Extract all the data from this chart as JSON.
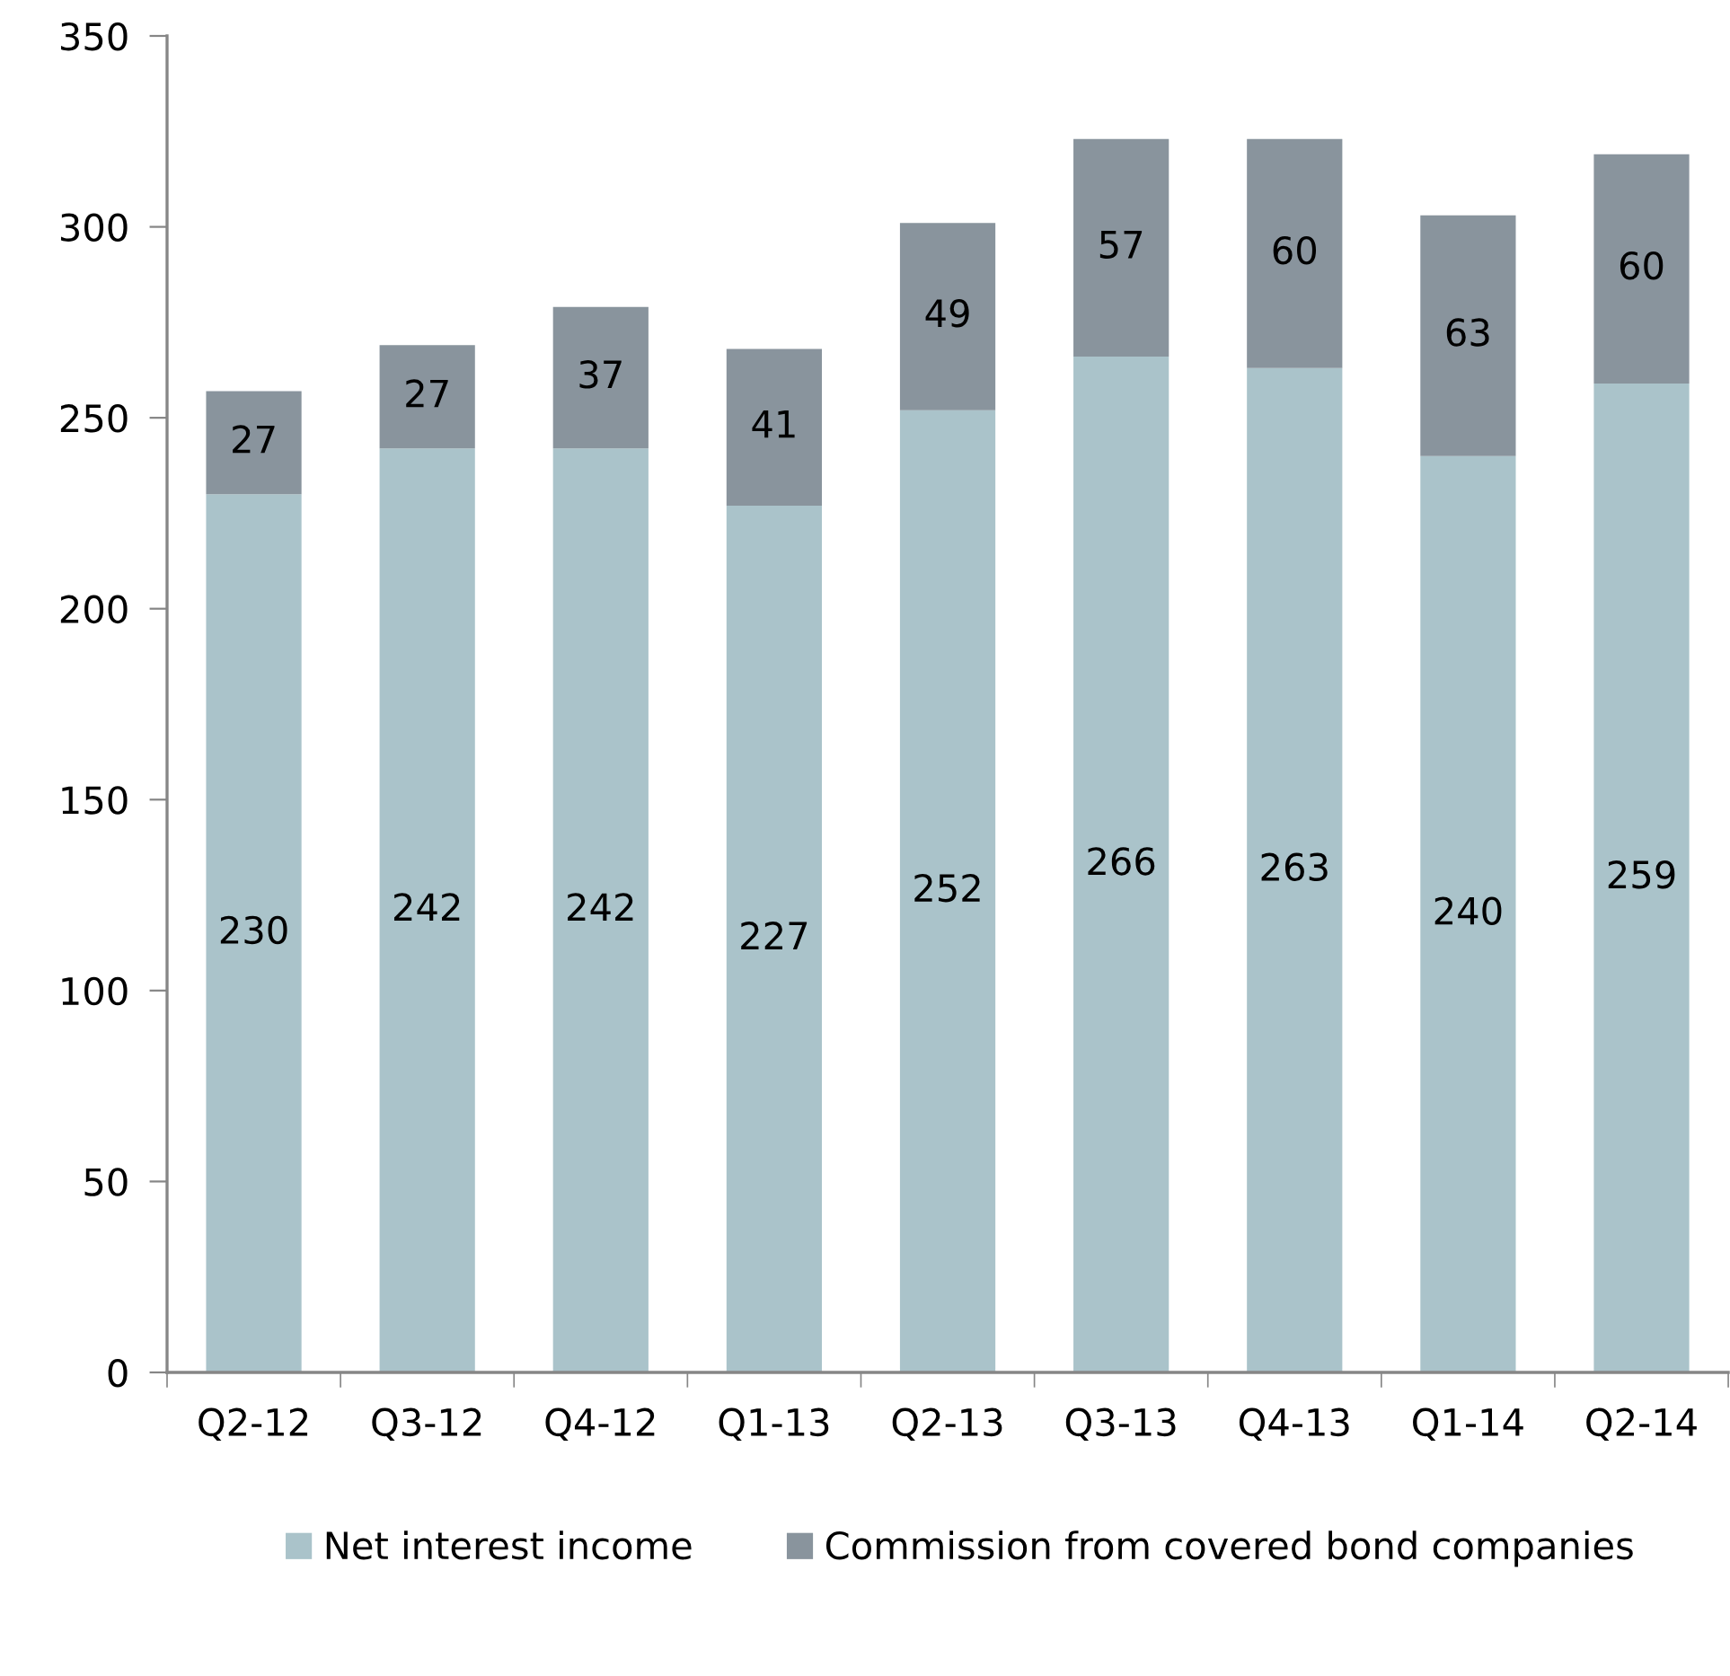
{
  "chart_data": {
    "type": "bar",
    "stacked": true,
    "categories": [
      "Q2-12",
      "Q3-12",
      "Q4-12",
      "Q1-13",
      "Q2-13",
      "Q3-13",
      "Q4-13",
      "Q1-14",
      "Q2-14"
    ],
    "series": [
      {
        "name": "Net interest income",
        "color": "#aac3ca",
        "values": [
          230,
          242,
          242,
          227,
          252,
          266,
          263,
          240,
          259
        ]
      },
      {
        "name": "Commission from covered bond companies",
        "color": "#89949d",
        "values": [
          27,
          27,
          37,
          41,
          49,
          57,
          60,
          63,
          60
        ]
      }
    ],
    "ylim": [
      0,
      350
    ],
    "yticks": [
      0,
      50,
      100,
      150,
      200,
      250,
      300,
      350
    ],
    "data_labels": true,
    "grid": false,
    "legend": "bottom"
  }
}
